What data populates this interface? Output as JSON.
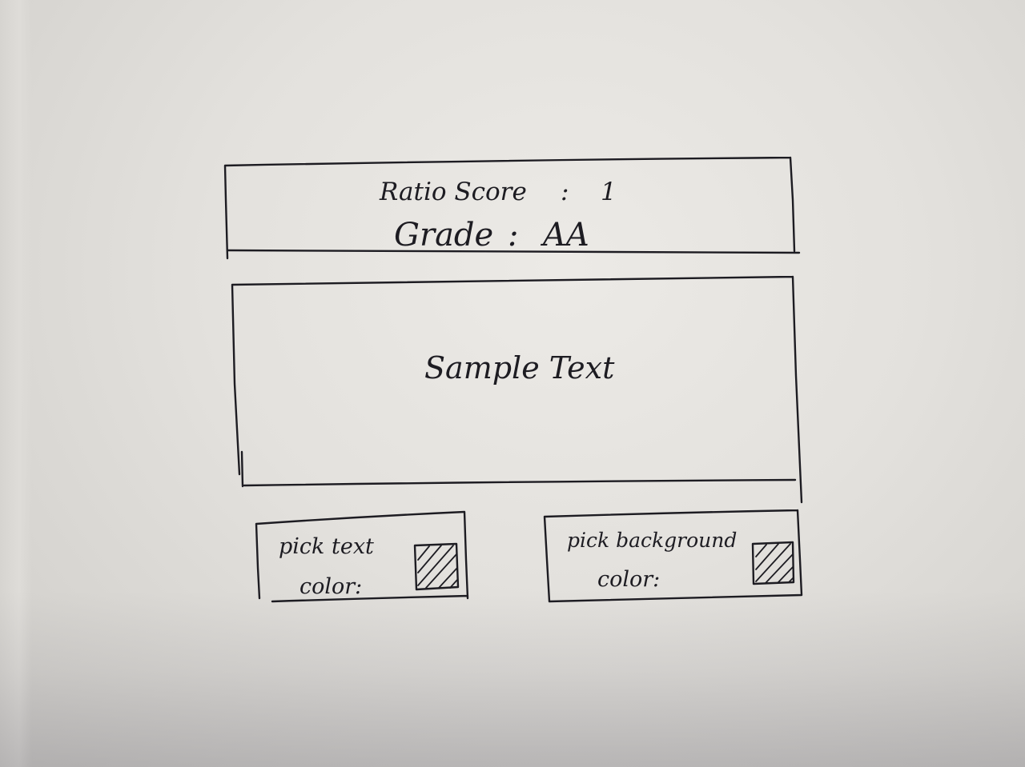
{
  "score_panel": {
    "ratio_label": "Ratio Score",
    "ratio_separator": ":",
    "ratio_value": "1",
    "grade_label": "Grade",
    "grade_separator": ":",
    "grade_value": "AA"
  },
  "preview": {
    "sample_text": "Sample Text"
  },
  "text_color_picker": {
    "label_line1": "pick text",
    "label_line2": "color:"
  },
  "background_color_picker": {
    "label_line1": "pick background",
    "label_line2": "color:"
  }
}
